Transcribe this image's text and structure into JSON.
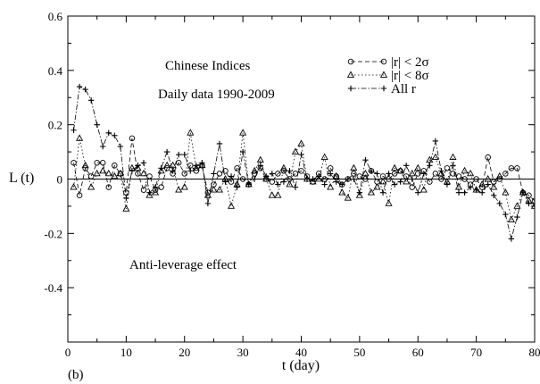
{
  "chart_data": {
    "type": "line",
    "title": "",
    "xlabel": "t (day)",
    "ylabel": "L (t)",
    "xlim": [
      0,
      80
    ],
    "ylim": [
      -0.6,
      0.6
    ],
    "x_ticks": [
      0,
      10,
      20,
      30,
      40,
      50,
      60,
      70,
      80
    ],
    "y_ticks": [
      -0.4,
      -0.2,
      0,
      0.2,
      0.4,
      0.6
    ],
    "y_tick_labels": [
      "-0.4",
      "-0.2",
      "0",
      "0.2",
      "0.4",
      "0.6"
    ],
    "grid": false,
    "zero_line": true,
    "legend_position": "top-right",
    "annotations": [
      "Chinese Indices",
      "Daily data 1990-2009",
      "Anti-leverage effect"
    ],
    "panel_label": "(b)",
    "series": [
      {
        "name": "|r| < 2σ",
        "marker": "circle",
        "dash": "dashed",
        "x": [
          1,
          2,
          3,
          4,
          5,
          6,
          7,
          8,
          9,
          10,
          11,
          12,
          13,
          14,
          15,
          16,
          17,
          18,
          19,
          20,
          21,
          22,
          23,
          24,
          25,
          26,
          27,
          28,
          29,
          30,
          31,
          32,
          33,
          34,
          35,
          36,
          37,
          38,
          39,
          40,
          41,
          42,
          43,
          44,
          45,
          46,
          47,
          48,
          49,
          50,
          51,
          52,
          53,
          54,
          55,
          56,
          57,
          58,
          59,
          60,
          61,
          62,
          63,
          64,
          65,
          66,
          67,
          68,
          69,
          70,
          71,
          72,
          73,
          74,
          75,
          76,
          77,
          78,
          79,
          80
        ],
        "y": [
          0.06,
          -0.06,
          0.04,
          0.01,
          0.06,
          0.06,
          -0.03,
          0.05,
          0.02,
          -0.05,
          0.15,
          0.02,
          -0.04,
          0.01,
          -0.04,
          -0.03,
          0.04,
          0.02,
          0.06,
          0.02,
          0.05,
          0.03,
          0.05,
          -0.05,
          -0.02,
          0.02,
          0.03,
          -0.01,
          0.04,
          0.0,
          -0.02,
          0.02,
          0.04,
          0.0,
          -0.01,
          0.02,
          0.03,
          0.0,
          0.02,
          0.03,
          0.01,
          -0.01,
          0.02,
          0.0,
          0.04,
          0.01,
          -0.02,
          0.0,
          0.02,
          0.01,
          0.0,
          0.03,
          -0.01,
          0.01,
          0.0,
          0.02,
          0.03,
          0.01,
          -0.03,
          0.02,
          0.03,
          -0.01,
          0.02,
          0.0,
          0.04,
          0.02,
          0.01,
          0.0,
          -0.02,
          0.0,
          -0.03,
          0.08,
          -0.01,
          0.0,
          0.02,
          0.04,
          0.04,
          -0.05,
          -0.06,
          -0.08
        ]
      },
      {
        "name": "|r| < 8σ",
        "marker": "triangle",
        "dash": "dotted",
        "x": [
          1,
          2,
          3,
          4,
          5,
          6,
          7,
          8,
          9,
          10,
          11,
          12,
          13,
          14,
          15,
          16,
          17,
          18,
          19,
          20,
          21,
          22,
          23,
          24,
          25,
          26,
          27,
          28,
          29,
          30,
          31,
          32,
          33,
          34,
          35,
          36,
          37,
          38,
          39,
          40,
          41,
          42,
          43,
          44,
          45,
          46,
          47,
          48,
          49,
          50,
          51,
          52,
          53,
          54,
          55,
          56,
          57,
          58,
          59,
          60,
          61,
          62,
          63,
          64,
          65,
          66,
          67,
          68,
          69,
          70,
          71,
          72,
          73,
          74,
          75,
          76,
          77,
          78,
          79,
          80
        ],
        "y": [
          -0.03,
          0.15,
          0.05,
          -0.03,
          0.02,
          0.03,
          0.02,
          0.01,
          0.02,
          -0.11,
          0.04,
          0.04,
          0.02,
          -0.06,
          -0.05,
          0.03,
          0.05,
          0.05,
          -0.04,
          -0.03,
          0.17,
          0.04,
          0.05,
          -0.06,
          -0.04,
          -0.04,
          0.0,
          -0.1,
          -0.02,
          0.17,
          -0.02,
          0.03,
          0.07,
          0.0,
          -0.06,
          -0.06,
          0.04,
          -0.02,
          0.1,
          0.13,
          0.0,
          -0.01,
          0.0,
          0.08,
          -0.03,
          0.01,
          -0.05,
          -0.07,
          0.04,
          -0.06,
          0.02,
          -0.05,
          -0.03,
          -0.01,
          -0.09,
          0.04,
          0.03,
          -0.01,
          0.02,
          0.04,
          -0.04,
          0.07,
          0.08,
          0.02,
          -0.01,
          0.08,
          -0.03,
          0.03,
          0.02,
          -0.04,
          -0.02,
          0.0,
          -0.03,
          0.01,
          -0.05,
          -0.15,
          -0.1,
          -0.05,
          -0.08,
          -0.1
        ]
      },
      {
        "name": "All r",
        "marker": "plus",
        "dash": "dashdot",
        "x": [
          1,
          2,
          3,
          4,
          5,
          6,
          7,
          8,
          9,
          10,
          11,
          12,
          13,
          14,
          15,
          16,
          17,
          18,
          19,
          20,
          21,
          22,
          23,
          24,
          25,
          26,
          27,
          28,
          29,
          30,
          31,
          32,
          33,
          34,
          35,
          36,
          37,
          38,
          39,
          40,
          41,
          42,
          43,
          44,
          45,
          46,
          47,
          48,
          49,
          50,
          51,
          52,
          53,
          54,
          55,
          56,
          57,
          58,
          59,
          60,
          61,
          62,
          63,
          64,
          65,
          66,
          67,
          68,
          69,
          70,
          71,
          72,
          73,
          74,
          75,
          76,
          77,
          78,
          79,
          80
        ],
        "y": [
          0.18,
          0.34,
          0.33,
          0.29,
          0.2,
          0.12,
          0.17,
          0.16,
          0.12,
          -0.07,
          0.03,
          0.05,
          0.06,
          -0.05,
          -0.03,
          0.04,
          0.1,
          0.03,
          0.09,
          0.09,
          0.03,
          0.05,
          0.06,
          -0.09,
          0.02,
          0.13,
          -0.01,
          0.01,
          -0.03,
          0.1,
          -0.02,
          0.0,
          0.05,
          0.01,
          0.02,
          -0.02,
          -0.01,
          0.03,
          -0.03,
          0.09,
          0.0,
          0.0,
          0.01,
          -0.02,
          0.02,
          -0.01,
          -0.02,
          0.0,
          0.0,
          -0.05,
          0.07,
          0.03,
          0.02,
          -0.05,
          0.02,
          -0.02,
          -0.01,
          0.05,
          0.0,
          -0.05,
          0.02,
          0.05,
          0.14,
          0.03,
          -0.02,
          0.05,
          -0.05,
          -0.05,
          -0.03,
          -0.04,
          -0.05,
          -0.02,
          -0.06,
          -0.09,
          -0.13,
          -0.22,
          -0.14,
          -0.05,
          -0.09,
          -0.09
        ]
      }
    ]
  }
}
